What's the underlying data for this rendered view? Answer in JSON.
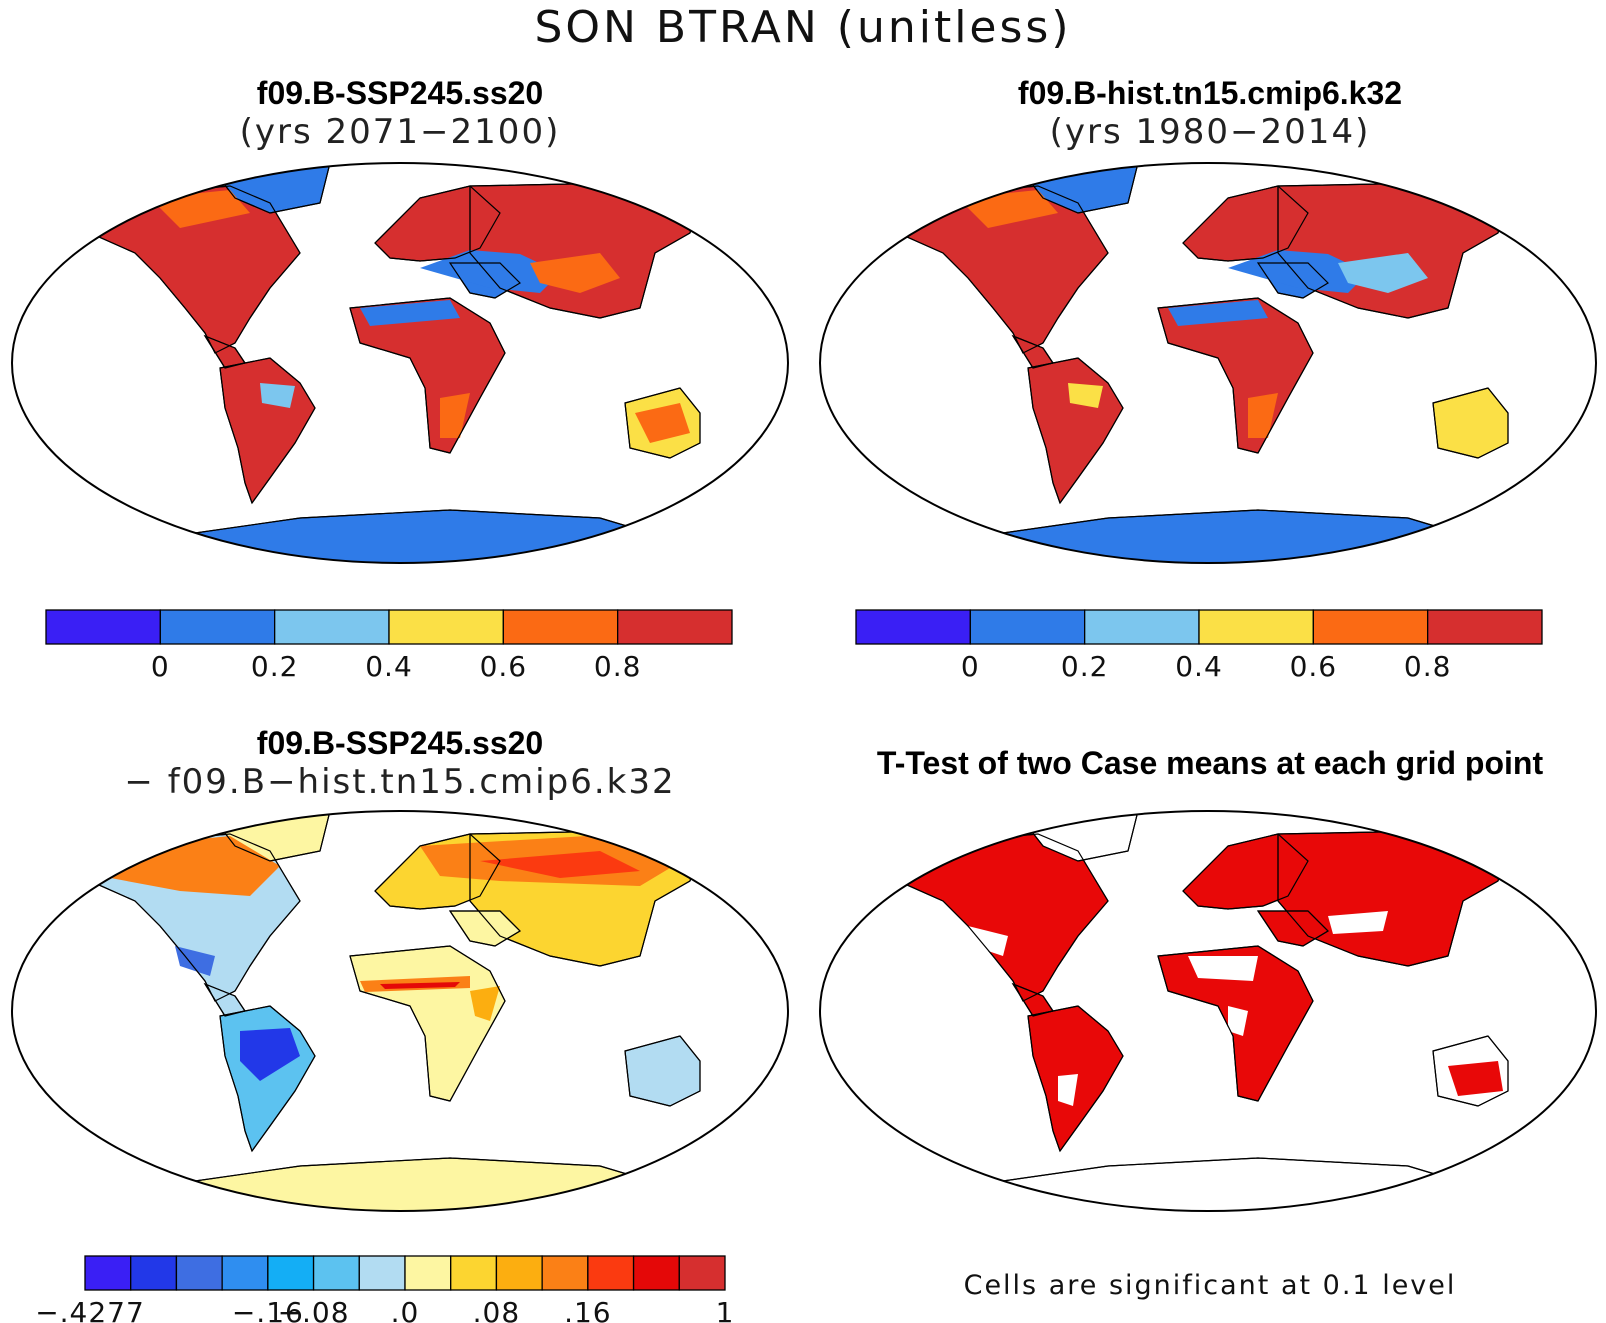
{
  "title": "SON BTRAN (unitless)",
  "panels": [
    {
      "title": "f09.B-SSP245.ss20",
      "subtitle": "(yrs 2071−2100)"
    },
    {
      "title": "f09.B-hist.tn15.cmip6.k32",
      "subtitle": "(yrs 1980−2014)"
    },
    {
      "title": "f09.B-SSP245.ss20",
      "subtitle": "− f09.B−hist.tn15.cmip6.k32"
    },
    {
      "title": "T-Test of two Case means at each grid point",
      "subtitle": ""
    }
  ],
  "colorbar_abs": {
    "colors": [
      "#3a1ff5",
      "#2f7be8",
      "#7cc6ee",
      "#fbe046",
      "#fb6a14",
      "#d62f2f"
    ],
    "tick_labels": [
      "0",
      "0.2",
      "0.4",
      "0.6",
      "0.8"
    ]
  },
  "colorbar_diff": {
    "colors": [
      "#3a1ff5",
      "#2238e8",
      "#3e6ee2",
      "#2f8ef0",
      "#14aef5",
      "#5cc2f0",
      "#b2dcf2",
      "#fdf6a2",
      "#fcd530",
      "#fcae10",
      "#fb8016",
      "#fb3a10",
      "#e40808",
      "#d62f2f"
    ],
    "tick_labels": [
      "−.4277",
      "−.16",
      "−.08",
      ".0",
      ".08",
      ".16",
      "1"
    ]
  },
  "significance_note": "Cells are significant at 0.1 level",
  "colors": {
    "ocean": "#ffffff",
    "coast": "#000000",
    "significant": "#e80808"
  }
}
